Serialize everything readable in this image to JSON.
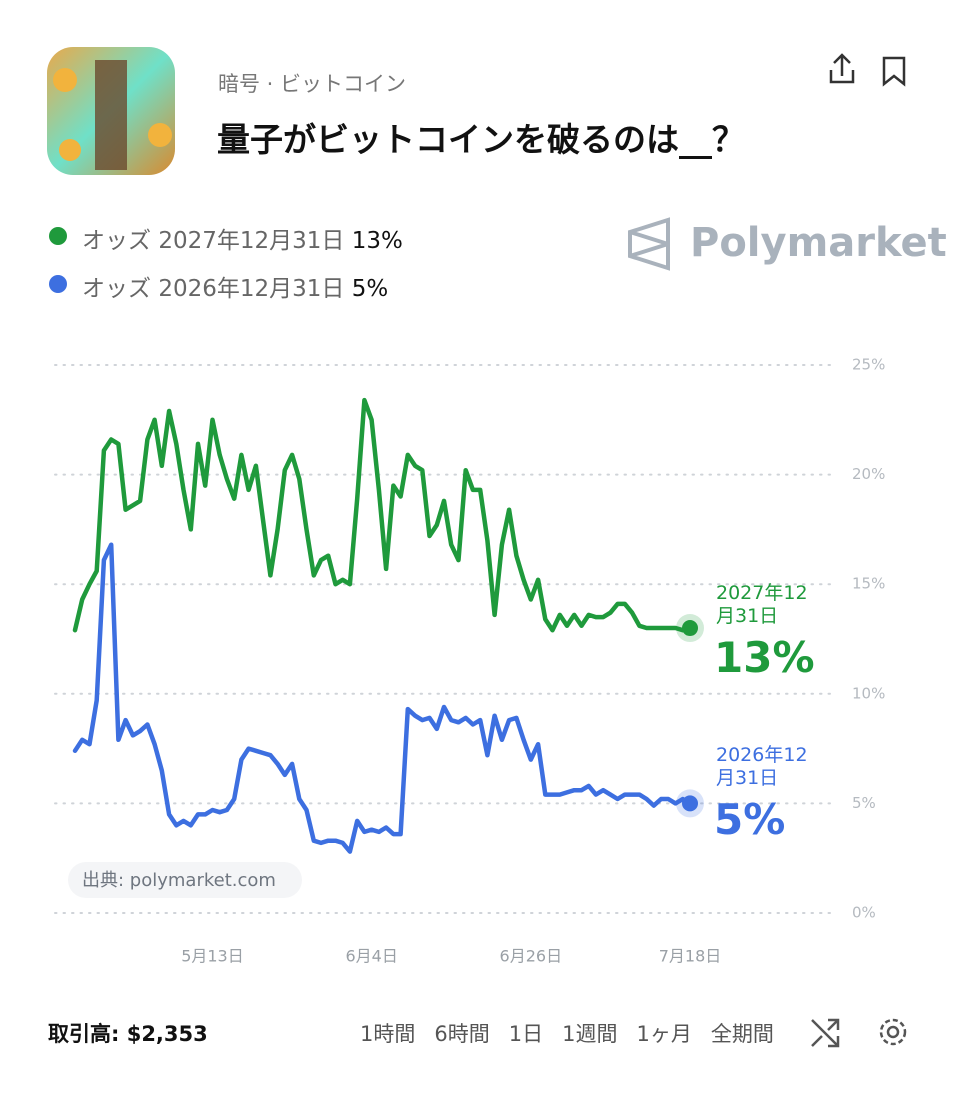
{
  "header": {
    "category": "暗号 · ビットコイン",
    "title": "量子がビットコインを破るのは__？"
  },
  "logo": "Polymarket",
  "source": "出典: polymarket.com",
  "volume": "取引高: $2,353",
  "ranges": [
    "1時間",
    "6時間",
    "1日",
    "1週間",
    "1ヶ月",
    "全期間"
  ],
  "chart_data": {
    "type": "line",
    "legend_prefix": "オッズ",
    "categories": [
      null,
      null,
      null,
      null,
      null,
      null,
      null,
      null,
      null,
      null,
      null,
      null,
      null,
      null,
      null,
      null,
      null,
      null,
      null,
      "5月13日",
      null,
      null,
      null,
      null,
      null,
      null,
      null,
      null,
      null,
      null,
      null,
      null,
      null,
      null,
      null,
      null,
      null,
      null,
      null,
      null,
      null,
      "6月4日",
      null,
      null,
      null,
      null,
      null,
      null,
      null,
      null,
      null,
      null,
      null,
      null,
      null,
      null,
      null,
      null,
      null,
      null,
      null,
      null,
      null,
      "6月26日",
      null,
      null,
      null,
      null,
      null,
      null,
      null,
      null,
      null,
      null,
      null,
      null,
      null,
      null,
      null,
      null,
      null,
      null,
      null,
      null,
      null,
      "7月18日"
    ],
    "series": [
      {
        "name": "2027年12月31日",
        "color": "#1f9a3c",
        "values": [
          12.9,
          14.3,
          15,
          15.6,
          21.1,
          21.6,
          21.4,
          18.4,
          18.6,
          18.8,
          21.6,
          22.5,
          20.4,
          22.9,
          21.4,
          19.3,
          17.5,
          21.4,
          19.5,
          22.5,
          20.9,
          19.8,
          18.9,
          20.9,
          19.3,
          20.4,
          17.9,
          15.4,
          17.5,
          20.2,
          20.9,
          19.8,
          17.5,
          15.4,
          16.1,
          16.3,
          15,
          15.2,
          15,
          18.9,
          23.4,
          22.5,
          19.3,
          15.7,
          19.5,
          19,
          20.9,
          20.4,
          20.2,
          17.2,
          17.7,
          18.8,
          16.8,
          16.1,
          20.2,
          19.3,
          19.3,
          17,
          13.6,
          16.8,
          18.4,
          16.3,
          15.2,
          14.3,
          15.2,
          13.4,
          12.9,
          13.6,
          13.1,
          13.6,
          13.1,
          13.6,
          13.5,
          13.5,
          13.7,
          14.1,
          14.1,
          13.7,
          13.1,
          13,
          13,
          13,
          13,
          13,
          12.9,
          13
        ],
        "value_labels": [
          null,
          null,
          null,
          null,
          null,
          null,
          null,
          null,
          null,
          null,
          null,
          null,
          null,
          null,
          null,
          null,
          null,
          null,
          null,
          null,
          null,
          null,
          null,
          null,
          null,
          null,
          null,
          null,
          null,
          null,
          null,
          null,
          null,
          null,
          null,
          null,
          null,
          null,
          null,
          null,
          null,
          null,
          null,
          null,
          null,
          null,
          null,
          null,
          null,
          null,
          null,
          null,
          null,
          null,
          null,
          null,
          null,
          null,
          null,
          null,
          null,
          null,
          null,
          null,
          null,
          null,
          null,
          null,
          null,
          null,
          null,
          null,
          null,
          null,
          null,
          null,
          null,
          null,
          null,
          null,
          null,
          null,
          null,
          null,
          null,
          "13%"
        ]
      },
      {
        "name": "2026年12月31日",
        "color": "#3d6fe0",
        "values": [
          7.4,
          7.9,
          7.7,
          9.7,
          16.1,
          16.8,
          7.9,
          8.8,
          8.1,
          8.3,
          8.6,
          7.7,
          6.5,
          4.5,
          4,
          4.2,
          4,
          4.5,
          4.5,
          4.7,
          4.6,
          4.7,
          5.2,
          7,
          7.5,
          7.4,
          7.3,
          7.2,
          6.8,
          6.3,
          6.8,
          5.2,
          4.7,
          3.3,
          3.2,
          3.3,
          3.3,
          3.2,
          2.8,
          4.2,
          3.7,
          3.8,
          3.7,
          3.9,
          3.6,
          3.6,
          9.3,
          9,
          8.8,
          8.9,
          8.4,
          9.4,
          8.8,
          8.7,
          8.9,
          8.6,
          8.8,
          7.2,
          9,
          7.9,
          8.8,
          8.9,
          7.9,
          7,
          7.7,
          5.4,
          5.4,
          5.4,
          5.5,
          5.6,
          5.6,
          5.8,
          5.4,
          5.6,
          5.4,
          5.2,
          5.4,
          5.4,
          5.4,
          5.2,
          4.9,
          5.2,
          5.2,
          5,
          5.2,
          5
        ],
        "value_labels": [
          null,
          null,
          null,
          null,
          null,
          null,
          null,
          null,
          null,
          null,
          null,
          null,
          null,
          null,
          null,
          null,
          null,
          null,
          null,
          null,
          null,
          null,
          null,
          null,
          null,
          null,
          null,
          null,
          null,
          null,
          null,
          null,
          null,
          null,
          null,
          null,
          null,
          null,
          null,
          null,
          null,
          null,
          null,
          null,
          null,
          null,
          null,
          null,
          null,
          null,
          null,
          null,
          null,
          null,
          null,
          null,
          null,
          null,
          null,
          null,
          null,
          null,
          null,
          null,
          null,
          null,
          null,
          null,
          null,
          null,
          null,
          null,
          null,
          null,
          null,
          null,
          null,
          null,
          null,
          null,
          null,
          null,
          null,
          null,
          null,
          "5%"
        ]
      }
    ],
    "ylim": [
      0,
      25
    ],
    "yticks": [
      {
        "value": 0,
        "label": "0%"
      },
      {
        "value": 5,
        "label": "5%"
      },
      {
        "value": 10,
        "label": "10%"
      },
      {
        "value": 15,
        "label": "15%"
      },
      {
        "value": 20,
        "label": "20%"
      },
      {
        "value": 25,
        "label": "25%"
      }
    ],
    "grid": true
  }
}
